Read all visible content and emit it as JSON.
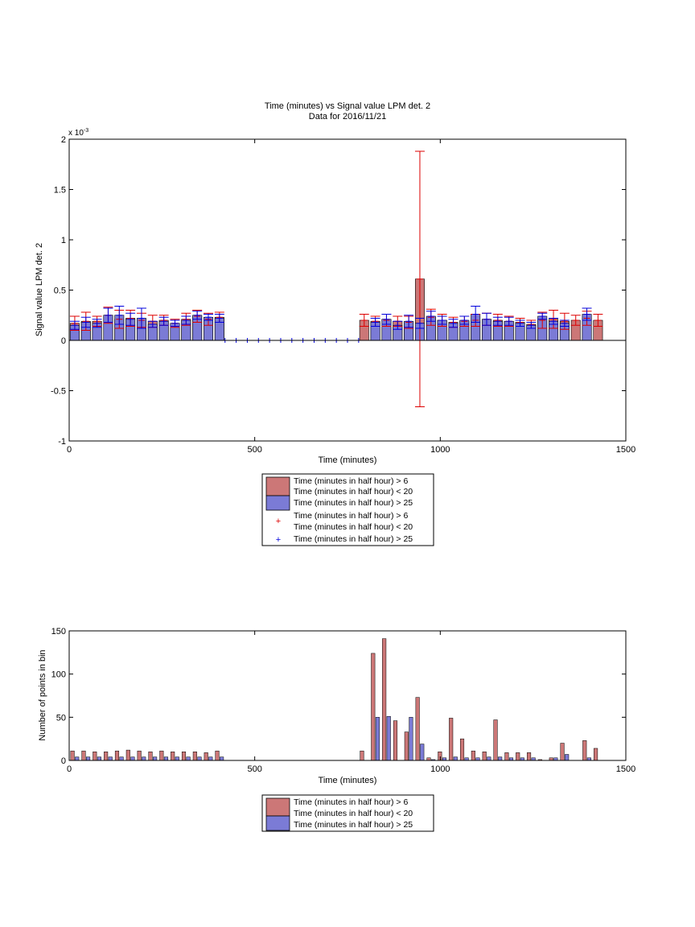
{
  "colors": {
    "series_a": "#cc7777",
    "series_b": "#7b7bd6",
    "err_a": "#dd0000",
    "err_b": "#0000dd"
  },
  "chart_data": [
    {
      "type": "bar",
      "title": "Time (minutes) vs Signal value LPM det. 2",
      "subtitle": "Data for 2016/11/21",
      "xlabel": "Time (minutes)",
      "ylabel": "Signal value LPM det. 2",
      "exponent_label": "x 10",
      "exponent_power": "-3",
      "xlim": [
        0,
        1500
      ],
      "ylim": [
        -1,
        2
      ],
      "xticks": [
        "0",
        "500",
        "1000",
        "1500"
      ],
      "yticks": [
        "-1",
        "-0.5",
        "0",
        "0.5",
        "1",
        "1.5",
        "2"
      ],
      "grid": false,
      "legend_position": "below",
      "legend": [
        "Time (minutes in half hour) > 6",
        "Time (minutes in half hour) < 20",
        "Time (minutes in half hour) > 25",
        "Time (minutes in half hour) > 6",
        "Time (minutes in half hour) < 20",
        "Time (minutes in half hour) > 25"
      ],
      "series": [
        {
          "x": [
            15,
            45,
            75,
            105,
            135,
            165,
            195,
            225,
            255,
            285,
            315,
            345,
            375,
            405,
            795,
            825,
            855,
            885,
            915,
            945,
            975,
            1005,
            1035,
            1065,
            1095,
            1125,
            1155,
            1185,
            1215,
            1245,
            1275,
            1305,
            1335,
            1365,
            1395,
            1425
          ],
          "values": [
            0.17,
            0.19,
            0.19,
            0.25,
            0.21,
            0.22,
            0.2,
            0.19,
            0.2,
            0.17,
            0.21,
            0.24,
            0.21,
            0.23,
            0.2,
            0.19,
            0.2,
            0.19,
            0.18,
            0.61,
            0.23,
            0.2,
            0.18,
            0.19,
            0.2,
            0.21,
            0.2,
            0.19,
            0.18,
            0.16,
            0.2,
            0.21,
            0.19,
            0.2,
            0.22,
            0.2
          ],
          "err": [
            0.07,
            0.09,
            0.05,
            0.08,
            0.09,
            0.08,
            0.07,
            0.06,
            0.05,
            0.04,
            0.06,
            0.06,
            0.06,
            0.05,
            0.06,
            0.05,
            0.06,
            0.05,
            0.06,
            1.27,
            0.08,
            0.06,
            0.05,
            0.05,
            0.06,
            0.06,
            0.06,
            0.05,
            0.04,
            0.04,
            0.08,
            0.09,
            0.08,
            0.05,
            0.07,
            0.06
          ]
        },
        {
          "x": [
            15,
            45,
            75,
            105,
            135,
            165,
            195,
            225,
            255,
            285,
            315,
            345,
            375,
            405,
            825,
            855,
            885,
            915,
            945,
            975,
            1005,
            1035,
            1065,
            1095,
            1125,
            1155,
            1185,
            1215,
            1245,
            1275,
            1305,
            1335,
            1365,
            1395,
            1425
          ],
          "values": [
            0.15,
            0.18,
            0.17,
            0.25,
            0.25,
            0.21,
            0.22,
            0.16,
            0.19,
            0.17,
            0.2,
            0.25,
            0.23,
            0.22,
            0.18,
            0.21,
            0.15,
            0.19,
            0.17,
            0.24,
            0.2,
            0.17,
            0.2,
            0.26,
            0.21,
            0.19,
            0.19,
            0.17,
            0.15,
            0.24,
            0.19,
            0.17,
            0.0,
            0.26,
            0.0
          ],
          "err": [
            0.04,
            0.05,
            0.04,
            0.07,
            0.09,
            0.06,
            0.1,
            0.03,
            0.04,
            0.03,
            0.04,
            0.04,
            0.03,
            0.04,
            0.04,
            0.05,
            0.04,
            0.06,
            0.05,
            0.05,
            0.04,
            0.04,
            0.04,
            0.08,
            0.06,
            0.04,
            0.04,
            0.03,
            0.03,
            0.03,
            0.03,
            0.03,
            0.0,
            0.06,
            0.0
          ]
        }
      ],
      "markers": {
        "x": [
          420,
          450,
          480,
          510,
          540,
          570,
          600,
          630,
          660,
          690,
          720,
          750,
          780
        ],
        "y": [
          0,
          0,
          0,
          0,
          0,
          0,
          0,
          0,
          0,
          0,
          0,
          0,
          0
        ]
      }
    },
    {
      "type": "bar",
      "xlabel": "Time (minutes)",
      "ylabel": "Number of points in bin",
      "xlim": [
        0,
        1500
      ],
      "ylim": [
        0,
        150
      ],
      "xticks": [
        "0",
        "500",
        "1000",
        "1500"
      ],
      "yticks": [
        "0",
        "50",
        "100",
        "150"
      ],
      "grid": false,
      "legend_position": "below",
      "legend": [
        "Time (minutes in half hour) > 6",
        "Time (minutes in half hour) < 20",
        "Time (minutes in half hour) > 25"
      ],
      "series": [
        {
          "x": [
            15,
            45,
            75,
            105,
            135,
            165,
            195,
            225,
            255,
            285,
            315,
            345,
            375,
            405,
            795,
            825,
            855,
            885,
            915,
            945,
            975,
            1005,
            1035,
            1065,
            1095,
            1125,
            1155,
            1185,
            1215,
            1245,
            1275,
            1305,
            1335,
            1365,
            1395,
            1425
          ],
          "values": [
            11,
            11,
            10,
            10,
            11,
            12,
            11,
            10,
            11,
            10,
            10,
            10,
            9,
            11,
            11,
            124,
            141,
            46,
            33,
            73,
            3,
            10,
            49,
            25,
            11,
            10,
            47,
            9,
            9,
            9,
            1,
            3,
            20,
            0,
            23,
            14
          ]
        },
        {
          "x": [
            15,
            45,
            75,
            105,
            135,
            165,
            195,
            225,
            255,
            285,
            315,
            345,
            375,
            405,
            795,
            825,
            855,
            885,
            915,
            945,
            975,
            1005,
            1035,
            1065,
            1095,
            1125,
            1155,
            1185,
            1215,
            1245,
            1275,
            1305,
            1335,
            1365,
            1395,
            1425
          ],
          "values": [
            4,
            4,
            4,
            4,
            4,
            4,
            4,
            4,
            4,
            4,
            4,
            4,
            4,
            4,
            0,
            50,
            51,
            0,
            50,
            19,
            1,
            3,
            4,
            3,
            3,
            4,
            4,
            3,
            3,
            3,
            0,
            3,
            7,
            0,
            3,
            0
          ]
        }
      ]
    }
  ]
}
